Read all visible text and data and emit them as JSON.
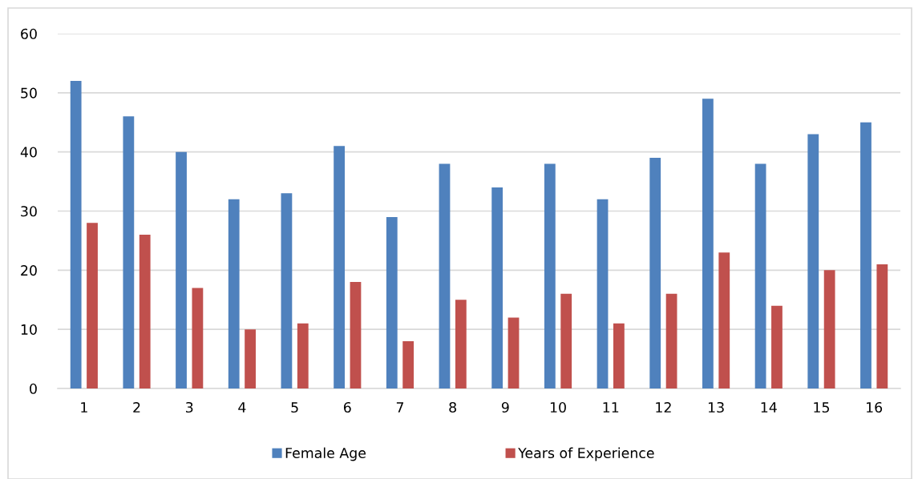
{
  "chart_data": {
    "type": "bar",
    "categories": [
      "1",
      "2",
      "3",
      "4",
      "5",
      "6",
      "7",
      "8",
      "9",
      "10",
      "11",
      "12",
      "13",
      "14",
      "15",
      "16"
    ],
    "series": [
      {
        "name": "Female Age",
        "color": "#4f81bd",
        "values": [
          52,
          46,
          40,
          32,
          33,
          41,
          29,
          38,
          34,
          38,
          32,
          39,
          49,
          38,
          43,
          45
        ]
      },
      {
        "name": "Years of Experience",
        "color": "#c0504d",
        "values": [
          28,
          26,
          17,
          10,
          11,
          18,
          8,
          15,
          12,
          16,
          11,
          16,
          23,
          14,
          20,
          21
        ]
      }
    ],
    "ylim": [
      0,
      60
    ],
    "yticks": [
      0,
      10,
      20,
      30,
      40,
      50,
      60
    ],
    "grid": "y",
    "legend": "bottom"
  }
}
